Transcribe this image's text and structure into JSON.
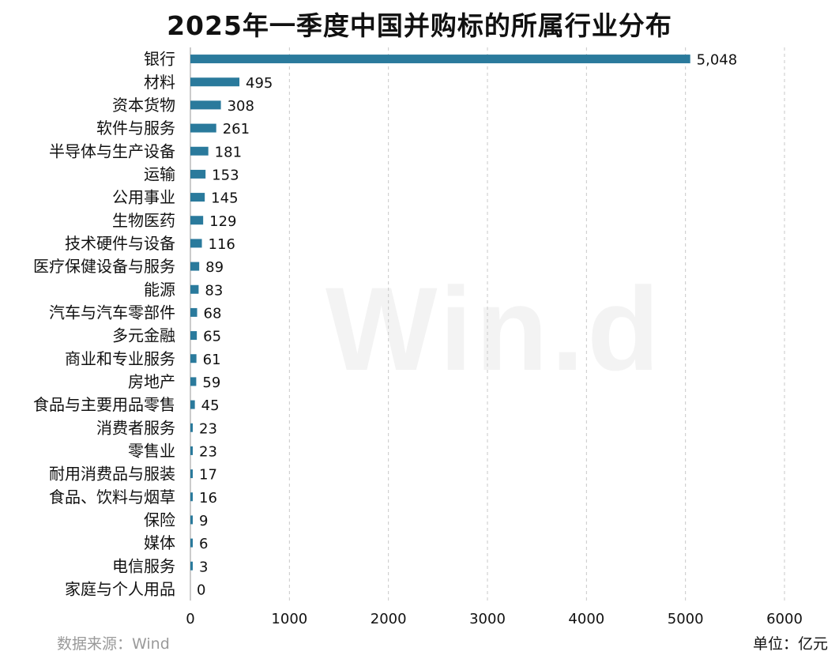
{
  "chart_data": {
    "type": "bar",
    "orientation": "horizontal",
    "title": "2025年一季度中国并购标的所属行业分布",
    "unit_label": "单位：亿元",
    "source": "数据来源：Wind",
    "watermark": "Win.d",
    "categories": [
      "银行",
      "材料",
      "资本货物",
      "软件与服务",
      "半导体与生产设备",
      "运输",
      "公用事业",
      "生物医药",
      "技术硬件与设备",
      "医疗保健设备与服务",
      "能源",
      "汽车与汽车零部件",
      "多元金融",
      "商业和专业服务",
      "房地产",
      "食品与主要用品零售",
      "消费者服务",
      "零售业",
      "耐用消费品与服装",
      "食品、饮料与烟草",
      "保险",
      "媒体",
      "电信服务",
      "家庭与个人用品"
    ],
    "values": [
      5048,
      495,
      308,
      261,
      181,
      153,
      145,
      129,
      116,
      89,
      83,
      68,
      65,
      61,
      59,
      45,
      23,
      23,
      17,
      16,
      9,
      6,
      3,
      0
    ],
    "value_labels": [
      "5,048",
      "495",
      "308",
      "261",
      "181",
      "153",
      "145",
      "129",
      "116",
      "89",
      "83",
      "68",
      "65",
      "61",
      "59",
      "45",
      "23",
      "23",
      "17",
      "16",
      "9",
      "6",
      "3",
      "0"
    ],
    "xlim": [
      0,
      6000
    ],
    "xticks": [
      "0",
      "1000",
      "2000",
      "3000",
      "4000",
      "5000",
      "6000"
    ],
    "grid": "vertical-dashed",
    "bar_color": "#2a7a9c"
  }
}
